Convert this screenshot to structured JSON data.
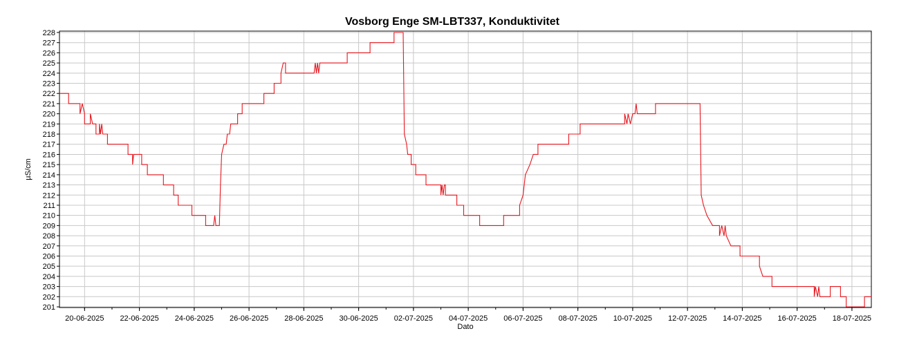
{
  "chart_data": {
    "type": "line",
    "title": "Vosborg Enge SM-LBT337, Konduktivitet",
    "xlabel": "Dato",
    "ylabel": "µS/cm",
    "ylim": [
      201,
      228
    ],
    "y_ticks": [
      201,
      202,
      203,
      204,
      205,
      206,
      207,
      208,
      209,
      210,
      211,
      212,
      213,
      214,
      215,
      216,
      217,
      218,
      219,
      220,
      221,
      222,
      223,
      224,
      225,
      226,
      227,
      228
    ],
    "x_range": [
      "2025-06-19T02:00",
      "2025-07-18T17:00"
    ],
    "x_ticks": [
      {
        "date": "2025-06-20",
        "label": "20-06-2025"
      },
      {
        "date": "2025-06-22",
        "label": "22-06-2025"
      },
      {
        "date": "2025-06-24",
        "label": "24-06-2025"
      },
      {
        "date": "2025-06-26",
        "label": "26-06-2025"
      },
      {
        "date": "2025-06-28",
        "label": "28-06-2025"
      },
      {
        "date": "2025-06-30",
        "label": "30-06-2025"
      },
      {
        "date": "2025-07-02",
        "label": "02-07-2025"
      },
      {
        "date": "2025-07-04",
        "label": "04-07-2025"
      },
      {
        "date": "2025-07-06",
        "label": "06-07-2025"
      },
      {
        "date": "2025-07-08",
        "label": "08-07-2025"
      },
      {
        "date": "2025-07-10",
        "label": "10-07-2025"
      },
      {
        "date": "2025-07-12",
        "label": "12-07-2025"
      },
      {
        "date": "2025-07-14",
        "label": "14-07-2025"
      },
      {
        "date": "2025-07-16",
        "label": "16-07-2025"
      },
      {
        "date": "2025-07-18",
        "label": "18-07-2025"
      }
    ],
    "grid": true,
    "series": [
      {
        "name": "",
        "color": "#e8141c",
        "points": [
          [
            "2025-06-19T02:00",
            222
          ],
          [
            "2025-06-19T10:00",
            222
          ],
          [
            "2025-06-19T10:00",
            221
          ],
          [
            "2025-06-19T20:00",
            221
          ],
          [
            "2025-06-19T20:00",
            220
          ],
          [
            "2025-06-19T22:00",
            221
          ],
          [
            "2025-06-20T00:00",
            220
          ],
          [
            "2025-06-20T00:00",
            219
          ],
          [
            "2025-06-20T05:00",
            219
          ],
          [
            "2025-06-20T05:00",
            220
          ],
          [
            "2025-06-20T07:00",
            219
          ],
          [
            "2025-06-20T10:00",
            219
          ],
          [
            "2025-06-20T10:00",
            218
          ],
          [
            "2025-06-20T13:00",
            218
          ],
          [
            "2025-06-20T13:00",
            219
          ],
          [
            "2025-06-20T14:00",
            218
          ],
          [
            "2025-06-20T15:00",
            219
          ],
          [
            "2025-06-20T16:00",
            218
          ],
          [
            "2025-06-20T20:00",
            218
          ],
          [
            "2025-06-20T20:00",
            217
          ],
          [
            "2025-06-21T14:00",
            217
          ],
          [
            "2025-06-21T14:00",
            216
          ],
          [
            "2025-06-21T18:00",
            216
          ],
          [
            "2025-06-21T18:00",
            215
          ],
          [
            "2025-06-21T19:00",
            216
          ],
          [
            "2025-06-22T02:00",
            216
          ],
          [
            "2025-06-22T02:00",
            215
          ],
          [
            "2025-06-22T07:00",
            215
          ],
          [
            "2025-06-22T07:00",
            214
          ],
          [
            "2025-06-22T21:00",
            214
          ],
          [
            "2025-06-22T21:00",
            213
          ],
          [
            "2025-06-23T06:00",
            213
          ],
          [
            "2025-06-23T06:00",
            212
          ],
          [
            "2025-06-23T10:00",
            212
          ],
          [
            "2025-06-23T10:00",
            211
          ],
          [
            "2025-06-23T22:00",
            211
          ],
          [
            "2025-06-23T22:00",
            210
          ],
          [
            "2025-06-24T10:00",
            210
          ],
          [
            "2025-06-24T10:00",
            209
          ],
          [
            "2025-06-24T17:00",
            209
          ],
          [
            "2025-06-24T18:00",
            210
          ],
          [
            "2025-06-24T19:00",
            209
          ],
          [
            "2025-06-24T22:00",
            209
          ],
          [
            "2025-06-24T23:00",
            213
          ],
          [
            "2025-06-25T00:00",
            216
          ],
          [
            "2025-06-25T02:00",
            217
          ],
          [
            "2025-06-25T04:00",
            217
          ],
          [
            "2025-06-25T05:00",
            218
          ],
          [
            "2025-06-25T07:00",
            218
          ],
          [
            "2025-06-25T08:00",
            219
          ],
          [
            "2025-06-25T14:00",
            219
          ],
          [
            "2025-06-25T14:00",
            220
          ],
          [
            "2025-06-25T18:00",
            220
          ],
          [
            "2025-06-25T18:00",
            221
          ],
          [
            "2025-06-26T13:00",
            221
          ],
          [
            "2025-06-26T13:00",
            222
          ],
          [
            "2025-06-26T22:00",
            222
          ],
          [
            "2025-06-26T22:00",
            223
          ],
          [
            "2025-06-27T04:00",
            223
          ],
          [
            "2025-06-27T04:00",
            224
          ],
          [
            "2025-06-27T06:00",
            225
          ],
          [
            "2025-06-27T08:00",
            225
          ],
          [
            "2025-06-27T08:00",
            224
          ],
          [
            "2025-06-28T09:00",
            224
          ],
          [
            "2025-06-28T10:00",
            225
          ],
          [
            "2025-06-28T11:00",
            224
          ],
          [
            "2025-06-28T12:00",
            225
          ],
          [
            "2025-06-28T13:00",
            224
          ],
          [
            "2025-06-28T14:00",
            225
          ],
          [
            "2025-06-29T14:00",
            225
          ],
          [
            "2025-06-29T14:00",
            226
          ],
          [
            "2025-06-30T10:00",
            226
          ],
          [
            "2025-06-30T10:00",
            227
          ],
          [
            "2025-07-01T07:00",
            227
          ],
          [
            "2025-07-01T07:00",
            228
          ],
          [
            "2025-07-01T15:00",
            228
          ],
          [
            "2025-07-01T16:00",
            218
          ],
          [
            "2025-07-01T18:00",
            217
          ],
          [
            "2025-07-01T19:00",
            216
          ],
          [
            "2025-07-01T22:00",
            216
          ],
          [
            "2025-07-01T22:00",
            215
          ],
          [
            "2025-07-02T02:00",
            215
          ],
          [
            "2025-07-02T02:00",
            214
          ],
          [
            "2025-07-02T11:00",
            214
          ],
          [
            "2025-07-02T11:00",
            213
          ],
          [
            "2025-07-03T00:00",
            213
          ],
          [
            "2025-07-03T00:00",
            212
          ],
          [
            "2025-07-03T01:00",
            213
          ],
          [
            "2025-07-03T02:00",
            212
          ],
          [
            "2025-07-03T03:00",
            213
          ],
          [
            "2025-07-03T04:00",
            213
          ],
          [
            "2025-07-03T04:00",
            212
          ],
          [
            "2025-07-03T14:00",
            212
          ],
          [
            "2025-07-03T14:00",
            211
          ],
          [
            "2025-07-03T20:00",
            211
          ],
          [
            "2025-07-03T20:00",
            210
          ],
          [
            "2025-07-04T10:00",
            210
          ],
          [
            "2025-07-04T10:00",
            209
          ],
          [
            "2025-07-05T07:00",
            209
          ],
          [
            "2025-07-05T07:00",
            210
          ],
          [
            "2025-07-05T21:00",
            210
          ],
          [
            "2025-07-05T21:00",
            211
          ],
          [
            "2025-07-06T00:00",
            212
          ],
          [
            "2025-07-06T02:00",
            214
          ],
          [
            "2025-07-06T06:00",
            215
          ],
          [
            "2025-07-06T09:00",
            216
          ],
          [
            "2025-07-06T13:00",
            216
          ],
          [
            "2025-07-06T13:00",
            217
          ],
          [
            "2025-07-07T16:00",
            217
          ],
          [
            "2025-07-07T16:00",
            218
          ],
          [
            "2025-07-08T02:00",
            218
          ],
          [
            "2025-07-08T02:00",
            219
          ],
          [
            "2025-07-09T17:00",
            219
          ],
          [
            "2025-07-09T17:00",
            220
          ],
          [
            "2025-07-09T19:00",
            219
          ],
          [
            "2025-07-09T20:00",
            220
          ],
          [
            "2025-07-09T22:00",
            219
          ],
          [
            "2025-07-10T00:00",
            220
          ],
          [
            "2025-07-10T02:00",
            220
          ],
          [
            "2025-07-10T03:00",
            221
          ],
          [
            "2025-07-10T04:00",
            220
          ],
          [
            "2025-07-10T20:00",
            220
          ],
          [
            "2025-07-10T20:00",
            221
          ],
          [
            "2025-07-12T11:00",
            221
          ],
          [
            "2025-07-12T12:00",
            212
          ],
          [
            "2025-07-12T14:00",
            211
          ],
          [
            "2025-07-12T17:00",
            210
          ],
          [
            "2025-07-12T22:00",
            209
          ],
          [
            "2025-07-13T04:00",
            209
          ],
          [
            "2025-07-13T04:00",
            208
          ],
          [
            "2025-07-13T06:00",
            209
          ],
          [
            "2025-07-13T08:00",
            208
          ],
          [
            "2025-07-13T09:00",
            209
          ],
          [
            "2025-07-13T10:00",
            208
          ],
          [
            "2025-07-13T14:00",
            207
          ],
          [
            "2025-07-13T22:00",
            207
          ],
          [
            "2025-07-13T22:00",
            206
          ],
          [
            "2025-07-14T15:00",
            206
          ],
          [
            "2025-07-14T15:00",
            205
          ],
          [
            "2025-07-14T18:00",
            204
          ],
          [
            "2025-07-15T02:00",
            204
          ],
          [
            "2025-07-15T02:00",
            203
          ],
          [
            "2025-07-16T15:00",
            203
          ],
          [
            "2025-07-16T15:00",
            202
          ],
          [
            "2025-07-16T16:00",
            203
          ],
          [
            "2025-07-16T18:00",
            202
          ],
          [
            "2025-07-16T19:00",
            203
          ],
          [
            "2025-07-16T20:00",
            202
          ],
          [
            "2025-07-17T05:00",
            202
          ],
          [
            "2025-07-17T05:00",
            203
          ],
          [
            "2025-07-17T14:00",
            203
          ],
          [
            "2025-07-17T14:00",
            202
          ],
          [
            "2025-07-17T19:00",
            202
          ],
          [
            "2025-07-17T19:00",
            201
          ],
          [
            "2025-07-18T11:00",
            201
          ],
          [
            "2025-07-18T11:00",
            202
          ],
          [
            "2025-07-18T17:00",
            202
          ]
        ]
      }
    ]
  }
}
